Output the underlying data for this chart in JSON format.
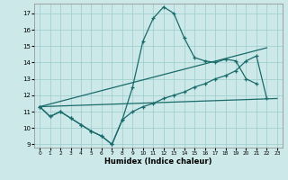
{
  "xlabel": "Humidex (Indice chaleur)",
  "xlim": [
    -0.5,
    23.5
  ],
  "ylim": [
    8.8,
    17.6
  ],
  "yticks": [
    9,
    10,
    11,
    12,
    13,
    14,
    15,
    16,
    17
  ],
  "xticks": [
    0,
    1,
    2,
    3,
    4,
    5,
    6,
    7,
    8,
    9,
    10,
    11,
    12,
    13,
    14,
    15,
    16,
    17,
    18,
    19,
    20,
    21,
    22,
    23
  ],
  "bg_color": "#cce8e8",
  "grid_color": "#99cccc",
  "line_color": "#1a6b6b",
  "line1_x": [
    0,
    1,
    2,
    3,
    4,
    5,
    6,
    7,
    8,
    9,
    10,
    11,
    12,
    13,
    14,
    15,
    16,
    17,
    18,
    19,
    20,
    21
  ],
  "line1_y": [
    11.3,
    10.7,
    11.0,
    10.6,
    10.2,
    9.8,
    9.5,
    9.0,
    10.5,
    12.5,
    15.3,
    16.7,
    17.4,
    17.0,
    15.5,
    14.3,
    14.1,
    14.0,
    14.2,
    14.1,
    13.0,
    12.7
  ],
  "line2_x": [
    0,
    1,
    2,
    3,
    4,
    5,
    6,
    7,
    8,
    9,
    10,
    11,
    12,
    13,
    14,
    15,
    16,
    17,
    18,
    19,
    20,
    21,
    22
  ],
  "line2_y": [
    11.3,
    10.7,
    11.0,
    10.6,
    10.2,
    9.8,
    9.5,
    9.0,
    10.5,
    11.0,
    11.3,
    11.5,
    11.8,
    12.0,
    12.2,
    12.5,
    12.7,
    13.0,
    13.2,
    13.5,
    14.1,
    14.4,
    11.8
  ],
  "line3_x": [
    0,
    22
  ],
  "line3_y": [
    11.3,
    14.9
  ],
  "line4_x": [
    0,
    23
  ],
  "line4_y": [
    11.3,
    11.8
  ]
}
